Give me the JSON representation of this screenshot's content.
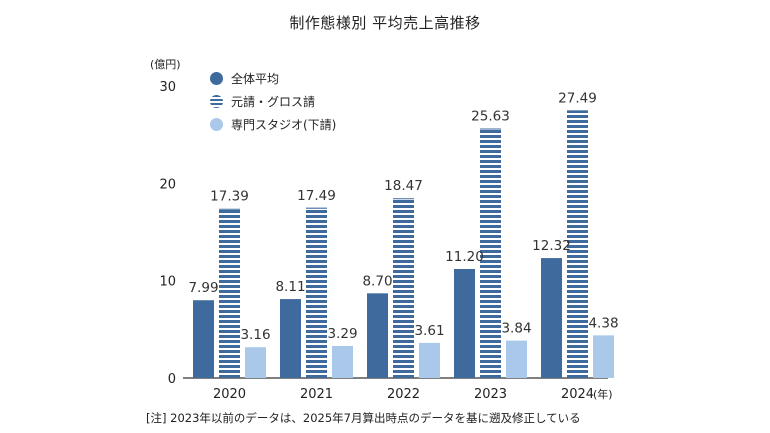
{
  "title": "制作態様別 平均売上高推移",
  "footnote": "[注] 2023年以前のデータは、2025年7月算出時点のデータを基に遡及修正している",
  "colors": {
    "series0": "#3e6a9e",
    "series1_stripe": "#3e6a9e",
    "series1_bg": "#ffffff",
    "series2": "#a9c8ea",
    "axis": "#333333",
    "gridline": "#cccccc"
  },
  "chart_data": {
    "type": "bar",
    "title": "制作態様別 平均売上高推移",
    "ylabel": "(億円)",
    "xlabel_unit": "(年)",
    "ylim": [
      0,
      30
    ],
    "yticks": [
      "0",
      "10",
      "20",
      "30"
    ],
    "categories": [
      "2020",
      "2021",
      "2022",
      "2023",
      "2024"
    ],
    "series": [
      {
        "name": "全体平均",
        "style": "solid-dark",
        "values": [
          7.99,
          8.11,
          8.7,
          11.2,
          12.32
        ],
        "labels": [
          "7.99",
          "8.11",
          "8.70",
          "11.20",
          "12.32"
        ]
      },
      {
        "name": "元請・グロス請",
        "style": "striped",
        "values": [
          17.39,
          17.49,
          18.47,
          25.63,
          27.49
        ],
        "labels": [
          "17.39",
          "17.49",
          "18.47",
          "25.63",
          "27.49"
        ]
      },
      {
        "name": "専門スタジオ(下請)",
        "style": "solid-light",
        "values": [
          3.16,
          3.29,
          3.61,
          3.84,
          4.38
        ],
        "labels": [
          "3.16",
          "3.29",
          "3.61",
          "3.84",
          "4.38"
        ]
      }
    ],
    "legend_position": "top-left",
    "grid": false
  }
}
